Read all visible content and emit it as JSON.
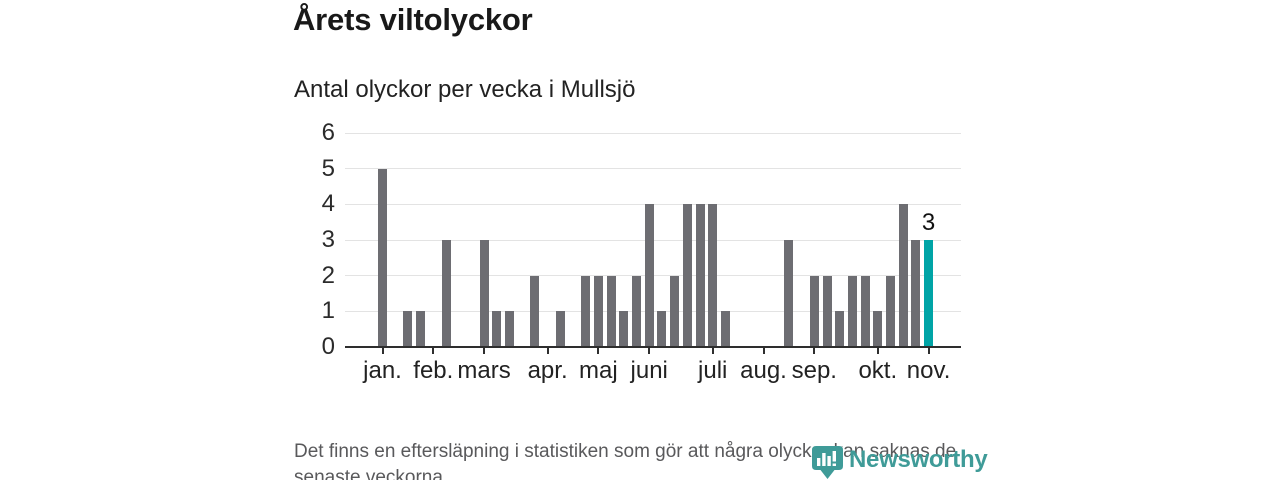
{
  "header": {
    "title": "Årets viltolyckor",
    "subtitle": "Antal olyckor per vecka i Mullsjö"
  },
  "chart_data": {
    "type": "bar",
    "title": "Årets viltolyckor",
    "subtitle": "Antal olyckor per vecka i Mullsjö",
    "x_unit": "vecka (weekly bars, jan–nov)",
    "ylabel": "",
    "ylim": [
      0,
      6
    ],
    "yticks": [
      0,
      1,
      2,
      3,
      4,
      5,
      6
    ],
    "grid": "horizontal",
    "values": [
      5,
      0,
      1,
      1,
      0,
      3,
      0,
      0,
      3,
      1,
      1,
      0,
      2,
      0,
      1,
      0,
      2,
      2,
      2,
      1,
      2,
      4,
      1,
      2,
      4,
      4,
      4,
      1,
      0,
      0,
      0,
      0,
      3,
      0,
      2,
      2,
      1,
      2,
      2,
      1,
      2,
      4,
      3,
      3
    ],
    "month_ticks": [
      {
        "label": "jan.",
        "week": 1
      },
      {
        "label": "feb.",
        "week": 5
      },
      {
        "label": "mars",
        "week": 9
      },
      {
        "label": "apr.",
        "week": 14
      },
      {
        "label": "maj",
        "week": 18
      },
      {
        "label": "juni",
        "week": 22
      },
      {
        "label": "juli",
        "week": 27
      },
      {
        "label": "aug.",
        "week": 31
      },
      {
        "label": "sep.",
        "week": 35
      },
      {
        "label": "okt.",
        "week": 40
      },
      {
        "label": "nov.",
        "week": 44
      }
    ],
    "highlight": {
      "index": 44,
      "value": 3,
      "label": "3"
    },
    "colors": {
      "bar": "#6d6d72",
      "highlight": "#00a4a6",
      "grid": "#e3e3e3",
      "axis": "#2e2e2e",
      "text": "#222222",
      "muted_text": "#59595b"
    }
  },
  "footnote": {
    "line1": "Det finns en eftersläpning i statistiken som gör att några olyckor kan saknas de",
    "line2": "senaste veckorna."
  },
  "logo": {
    "name": "Newsworthy",
    "color": "#3f9b98",
    "icon": "newsworthy-barchart-pin-icon"
  }
}
